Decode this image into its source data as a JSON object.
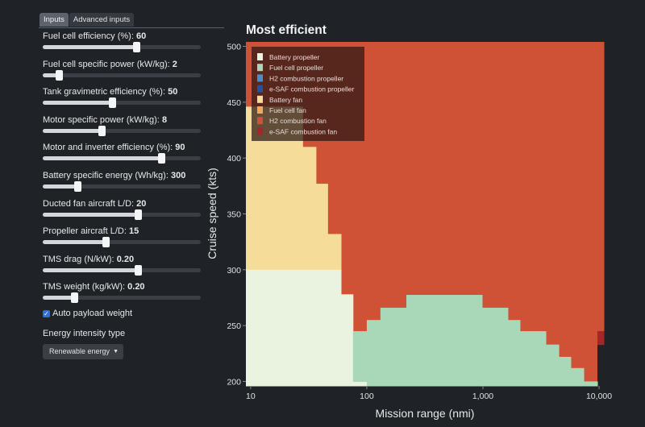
{
  "tabs": [
    {
      "label": "Inputs",
      "active": true
    },
    {
      "label": "Advanced inputs",
      "active": false
    }
  ],
  "sliders": [
    {
      "label": "Fuel cell efficiency (%):",
      "value": "60",
      "fraction": 0.59
    },
    {
      "label": "Fuel cell specific power (kW/kg):",
      "value": "2",
      "fraction": 0.1
    },
    {
      "label": "Tank gravimetric efficiency (%):",
      "value": "50",
      "fraction": 0.44
    },
    {
      "label": "Motor specific power (kW/kg):",
      "value": "8",
      "fraction": 0.37
    },
    {
      "label": "Motor and inverter efficiency (%):",
      "value": "90",
      "fraction": 0.75
    },
    {
      "label": "Battery specific energy (Wh/kg):",
      "value": "300",
      "fraction": 0.22
    },
    {
      "label": "Ducted fan aircraft L/D:",
      "value": "20",
      "fraction": 0.6
    },
    {
      "label": "Propeller aircraft L/D:",
      "value": "15",
      "fraction": 0.4
    },
    {
      "label": "TMS drag (N/kW):",
      "value": "0.20",
      "fraction": 0.6
    },
    {
      "label": "TMS weight (kg/kW):",
      "value": "0.20",
      "fraction": 0.2
    }
  ],
  "auto_payload": {
    "label": "Auto payload weight",
    "checked": true
  },
  "energy_type": {
    "label": "Energy intensity type",
    "selected": "Renewable energy"
  },
  "chart_data": {
    "type": "heatmap",
    "title": "Most efficient",
    "xlabel": "Mission range (nmi)",
    "ylabel": "Cruise speed (kts)",
    "xscale": "log",
    "xlim": [
      9.1,
      11000
    ],
    "ylim": [
      196,
      504
    ],
    "xticks": [
      {
        "v": 10,
        "t": "10"
      },
      {
        "v": 100,
        "t": "100"
      },
      {
        "v": 1000,
        "t": "1,000"
      },
      {
        "v": 10000,
        "t": "10,000"
      }
    ],
    "yticks": [
      200,
      250,
      300,
      350,
      400,
      450,
      500
    ],
    "legend_position": "top-left",
    "categories": [
      {
        "name": "Battery propeller",
        "color": "#eaf3df"
      },
      {
        "name": "Fuel cell propeller",
        "color": "#a9d8b9"
      },
      {
        "name": "H2 combustion propeller",
        "color": "#4a90c8"
      },
      {
        "name": "e-SAF combustion propeller",
        "color": "#2451a0"
      },
      {
        "name": "Battery fan",
        "color": "#f5dc98"
      },
      {
        "name": "Fuel cell fan",
        "color": "#f0a75e"
      },
      {
        "name": "H2 combustion fan",
        "color": "#cf5237"
      },
      {
        "name": "e-SAF combustion fan",
        "color": "#a3272a"
      }
    ],
    "regions": [
      {
        "cat": 6,
        "x": [
          9.1,
          11000
        ],
        "y": [
          196,
          504
        ]
      },
      {
        "cat": -1,
        "x": [
          9680,
          11000
        ],
        "y": [
          196,
          233
        ]
      },
      {
        "cat": 7,
        "x": [
          9680,
          11000
        ],
        "y": [
          233,
          245
        ]
      },
      {
        "cat": 4,
        "x": [
          9.1,
          28
        ],
        "y": [
          300,
          446
        ]
      },
      {
        "cat": 4,
        "x": [
          28,
          36.5
        ],
        "y": [
          300,
          410
        ]
      },
      {
        "cat": 4,
        "x": [
          36.5,
          46
        ],
        "y": [
          300,
          377
        ]
      },
      {
        "cat": 4,
        "x": [
          46,
          60
        ],
        "y": [
          300,
          332
        ]
      },
      {
        "cat": 0,
        "x": [
          9.1,
          60
        ],
        "y": [
          196,
          300
        ]
      },
      {
        "cat": 0,
        "x": [
          60,
          76
        ],
        "y": [
          196,
          278
        ]
      },
      {
        "cat": 0,
        "x": [
          76,
          100
        ],
        "y": [
          196,
          200
        ]
      },
      {
        "cat": 1,
        "x": [
          76,
          100
        ],
        "y": [
          200,
          245
        ]
      },
      {
        "cat": 1,
        "x": [
          100,
          131
        ],
        "y": [
          196,
          255
        ]
      },
      {
        "cat": 1,
        "x": [
          131,
          219
        ],
        "y": [
          196,
          266
        ]
      },
      {
        "cat": 1,
        "x": [
          219,
          984
        ],
        "y": [
          196,
          277.5
        ]
      },
      {
        "cat": 1,
        "x": [
          984,
          1640
        ],
        "y": [
          196,
          266
        ]
      },
      {
        "cat": 1,
        "x": [
          1640,
          2084
        ],
        "y": [
          196,
          255
        ]
      },
      {
        "cat": 1,
        "x": [
          2084,
          3480
        ],
        "y": [
          196,
          245
        ]
      },
      {
        "cat": 1,
        "x": [
          3480,
          4500
        ],
        "y": [
          196,
          233
        ]
      },
      {
        "cat": 1,
        "x": [
          4500,
          5710
        ],
        "y": [
          196,
          222
        ]
      },
      {
        "cat": 1,
        "x": [
          5710,
          7380
        ],
        "y": [
          196,
          212
        ]
      },
      {
        "cat": 1,
        "x": [
          7380,
          9680
        ],
        "y": [
          196,
          200
        ]
      }
    ]
  }
}
